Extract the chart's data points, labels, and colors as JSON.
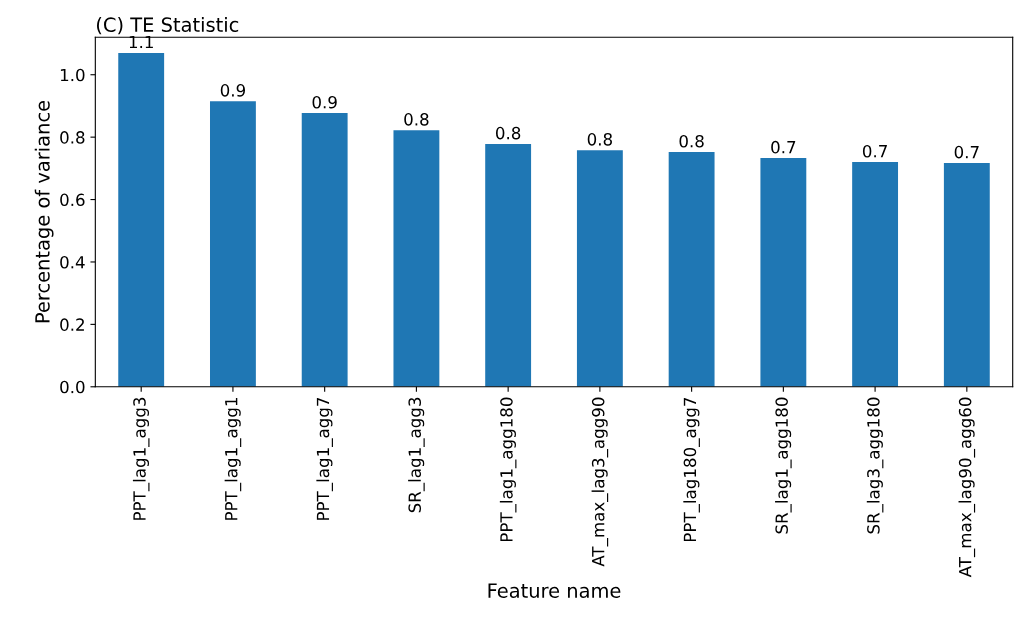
{
  "chart_data": {
    "type": "bar",
    "title": "(C) TE Statistic",
    "xlabel": "Feature name",
    "ylabel": "Percentage of variance",
    "categories": [
      "PPT_lag1_agg3",
      "PPT_lag1_agg1",
      "PPT_lag1_agg7",
      "SR_lag1_agg3",
      "PPT_lag1_agg180",
      "AT_max_lag3_agg90",
      "PPT_lag180_agg7",
      "SR_lag1_agg180",
      "SR_lag3_agg180",
      "AT_max_lag90_agg60"
    ],
    "values": [
      1.07,
      0.915,
      0.877,
      0.822,
      0.778,
      0.758,
      0.752,
      0.733,
      0.72,
      0.717
    ],
    "value_labels": [
      "1.1",
      "0.9",
      "0.9",
      "0.8",
      "0.8",
      "0.8",
      "0.8",
      "0.7",
      "0.7",
      "0.7"
    ],
    "color": "#1f77b4",
    "ylim": [
      0,
      1.12
    ],
    "yticks": [
      "0.0",
      "0.2",
      "0.4",
      "0.6",
      "0.8",
      "1.0"
    ],
    "grid": false,
    "legend": false
  }
}
